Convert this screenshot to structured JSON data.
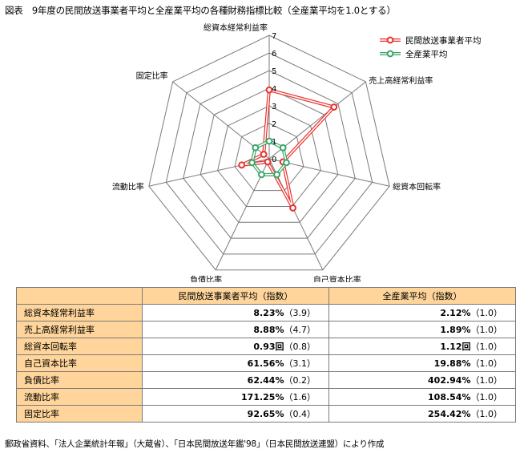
{
  "figure_title": "図表　9年度の民間放送事業者平均と全産業平均の各種財務指標比較（全産業平均を1.0とする）",
  "source_note": "郵政省資料、「法人企業統計年報」（大蔵省）、「日本民間放送年鑑'98」（日本民間放送連盟）により作成",
  "colors": {
    "series_minpo": "#e8302b",
    "series_all": "#3aa566",
    "header_bg": "#ffd59b",
    "grid": "#7a7a7a"
  },
  "chart_data": {
    "type": "radar",
    "axes": [
      "総資本経常利益率",
      "売上高経常利益率",
      "総資本回転率",
      "自己資本比率",
      "負債比率",
      "流動比率",
      "固定比率"
    ],
    "r_ticks": [
      "0",
      "1",
      "2",
      "3",
      "4",
      "5",
      "6",
      "7"
    ],
    "r_range": [
      0,
      7
    ],
    "legend_position": "top-right",
    "grid": true,
    "series": [
      {
        "name": "民間放送事業者平均",
        "values": [
          3.9,
          4.7,
          0.8,
          3.1,
          0.2,
          1.6,
          0.4
        ]
      },
      {
        "name": "全産業平均",
        "values": [
          1.0,
          1.0,
          1.0,
          1.0,
          1.0,
          1.0,
          1.0
        ]
      }
    ]
  },
  "table": {
    "headers": [
      "",
      "民間放送事業者平均（指数）",
      "全産業平均（指数）"
    ],
    "rows": [
      {
        "label": "総資本経常利益率",
        "minpo_value": "8.23%",
        "minpo_index": "（3.9）",
        "all_value": "2.12%",
        "all_index": "（1.0）"
      },
      {
        "label": "売上高経常利益率",
        "minpo_value": "8.88%",
        "minpo_index": "（4.7）",
        "all_value": "1.89%",
        "all_index": "（1.0）"
      },
      {
        "label": "総資本回転率",
        "minpo_value": "0.93回",
        "minpo_index": "（0.8）",
        "all_value": "1.12回",
        "all_index": "（1.0）"
      },
      {
        "label": "自己資本比率",
        "minpo_value": "61.56%",
        "minpo_index": "（3.1）",
        "all_value": "19.88%",
        "all_index": "（1.0）"
      },
      {
        "label": "負債比率",
        "minpo_value": "62.44%",
        "minpo_index": "（0.2）",
        "all_value": "402.94%",
        "all_index": "（1.0）"
      },
      {
        "label": "流動比率",
        "minpo_value": "171.25%",
        "minpo_index": "（1.6）",
        "all_value": "108.54%",
        "all_index": "（1.0）"
      },
      {
        "label": "固定比率",
        "minpo_value": "92.65%",
        "minpo_index": "（0.4）",
        "all_value": "254.42%",
        "all_index": "（1.0）"
      }
    ]
  }
}
